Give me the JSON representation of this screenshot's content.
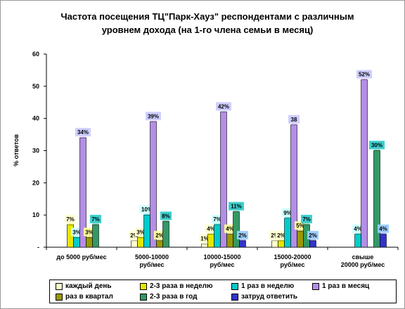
{
  "chart_data": {
    "type": "bar",
    "title": "Частота посещения ТЦ\"Парк-Хауз\" респондентами с различным уровнем дохода (на 1-го члена семьи в месяц)",
    "ylabel": "% ответов",
    "ylim": [
      0,
      60
    ],
    "yticks": [
      "60",
      "50",
      "40",
      "30",
      "20",
      "10",
      "-"
    ],
    "categories": [
      "до 5000 руб/мес",
      "5000-10000 руб/мес",
      "10000-15000 руб/мес",
      "15000-20000 руб/мес",
      "свыше 20000 руб/мес"
    ],
    "series": [
      {
        "name": "каждый день",
        "color": "#ffffcc",
        "values": [
          null,
          2,
          1,
          2,
          null
        ],
        "labels": [
          "",
          "2%",
          "1%",
          "2%",
          ""
        ]
      },
      {
        "name": "2-3 раза в неделю",
        "color": "#e6e600",
        "values": [
          7,
          3,
          4,
          2,
          null
        ],
        "labels": [
          "7%",
          "3%",
          "4%",
          "2%",
          ""
        ]
      },
      {
        "name": "1 раз в неделю",
        "color": "#00cccc",
        "values": [
          3,
          10,
          7,
          9,
          4
        ],
        "labels": [
          "3%",
          "10%",
          "7%",
          "9%",
          "4%"
        ]
      },
      {
        "name": "1 раз в месяц",
        "color": "#b48ee6",
        "values": [
          34,
          39,
          42,
          38,
          52
        ],
        "labels": [
          "34%",
          "39%",
          "42%",
          "38",
          "52%"
        ]
      },
      {
        "name": "раз в квартал",
        "color": "#999900",
        "values": [
          3,
          2,
          4,
          5,
          null
        ],
        "labels": [
          "3%",
          "2%",
          "4%",
          "5%",
          ""
        ]
      },
      {
        "name": "2-3 раза в год",
        "color": "#339966",
        "values": [
          7,
          8,
          11,
          7,
          30
        ],
        "labels": [
          "7%",
          "8%",
          "11%",
          "7%",
          "30%"
        ]
      },
      {
        "name": "затруд ответить",
        "color": "#3333cc",
        "values": [
          null,
          null,
          2,
          2,
          4
        ],
        "labels": [
          "",
          "",
          "2%",
          "2%",
          "4%"
        ]
      }
    ],
    "grid": false,
    "legend_position": "bottom"
  }
}
